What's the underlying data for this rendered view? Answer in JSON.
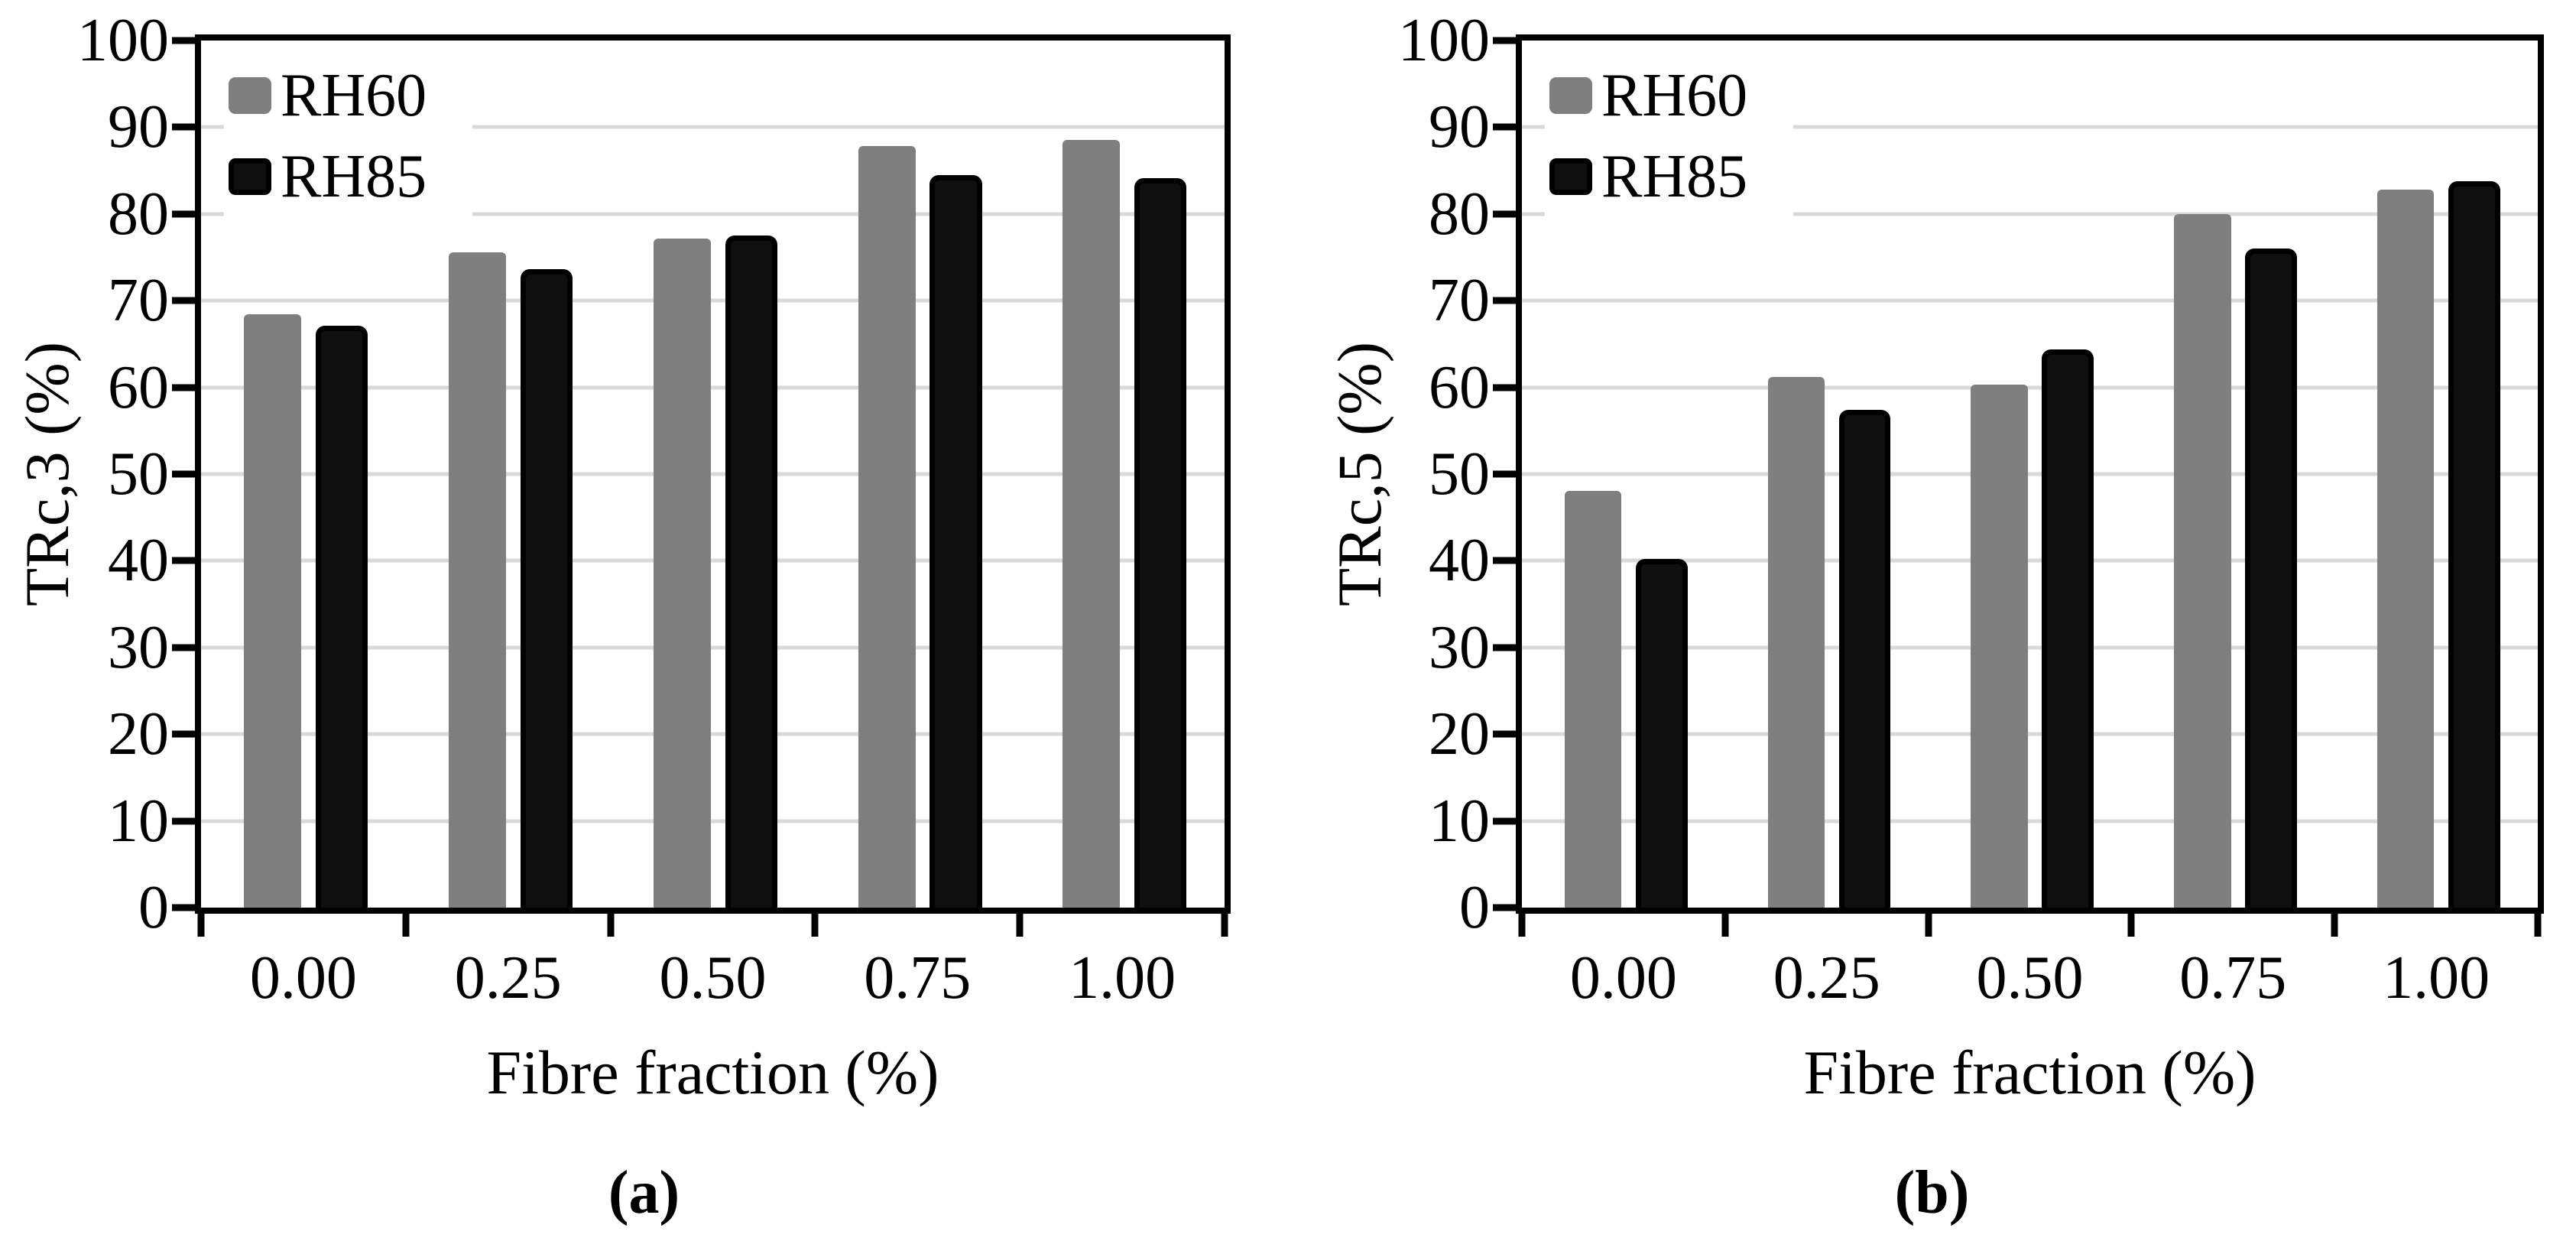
{
  "figure_background": "#ffffff",
  "chart_data": [
    {
      "type": "bar",
      "panel": "a",
      "caption": "(a)",
      "ylabel": "TRc,3 (%)",
      "xlabel": "Fibre fraction (%)",
      "categories": [
        "0.00",
        "0.25",
        "0.50",
        "0.75",
        "1.00"
      ],
      "series": [
        {
          "name": "RH60",
          "color": "#7f7f7f",
          "values": [
            68.4,
            75.6,
            77.2,
            87.8,
            88.5
          ]
        },
        {
          "name": "RH85",
          "color": "#0f0f0f",
          "border_color": "#000000",
          "values": [
            67.1,
            73.6,
            77.5,
            84.5,
            84.1
          ]
        }
      ],
      "ylim": [
        0,
        100
      ],
      "ytick_step": 10,
      "grid": true,
      "grid_color": "#d9d9d9",
      "axis_color": "#000000",
      "legend_position": "top-left"
    },
    {
      "type": "bar",
      "panel": "b",
      "caption": "(b)",
      "ylabel": "TRc,5 (%)",
      "xlabel": "Fibre fraction (%)",
      "categories": [
        "0.00",
        "0.25",
        "0.50",
        "0.75",
        "1.00"
      ],
      "series": [
        {
          "name": "RH60",
          "color": "#7f7f7f",
          "values": [
            48.1,
            61.2,
            60.3,
            80,
            82.8
          ]
        },
        {
          "name": "RH85",
          "color": "#0f0f0f",
          "border_color": "#000000",
          "values": [
            40.2,
            57.4,
            64.4,
            76,
            83.8
          ]
        }
      ],
      "ylim": [
        0,
        100
      ],
      "ytick_step": 10,
      "grid": true,
      "grid_color": "#d9d9d9",
      "axis_color": "#000000",
      "legend_position": "top-left"
    }
  ]
}
